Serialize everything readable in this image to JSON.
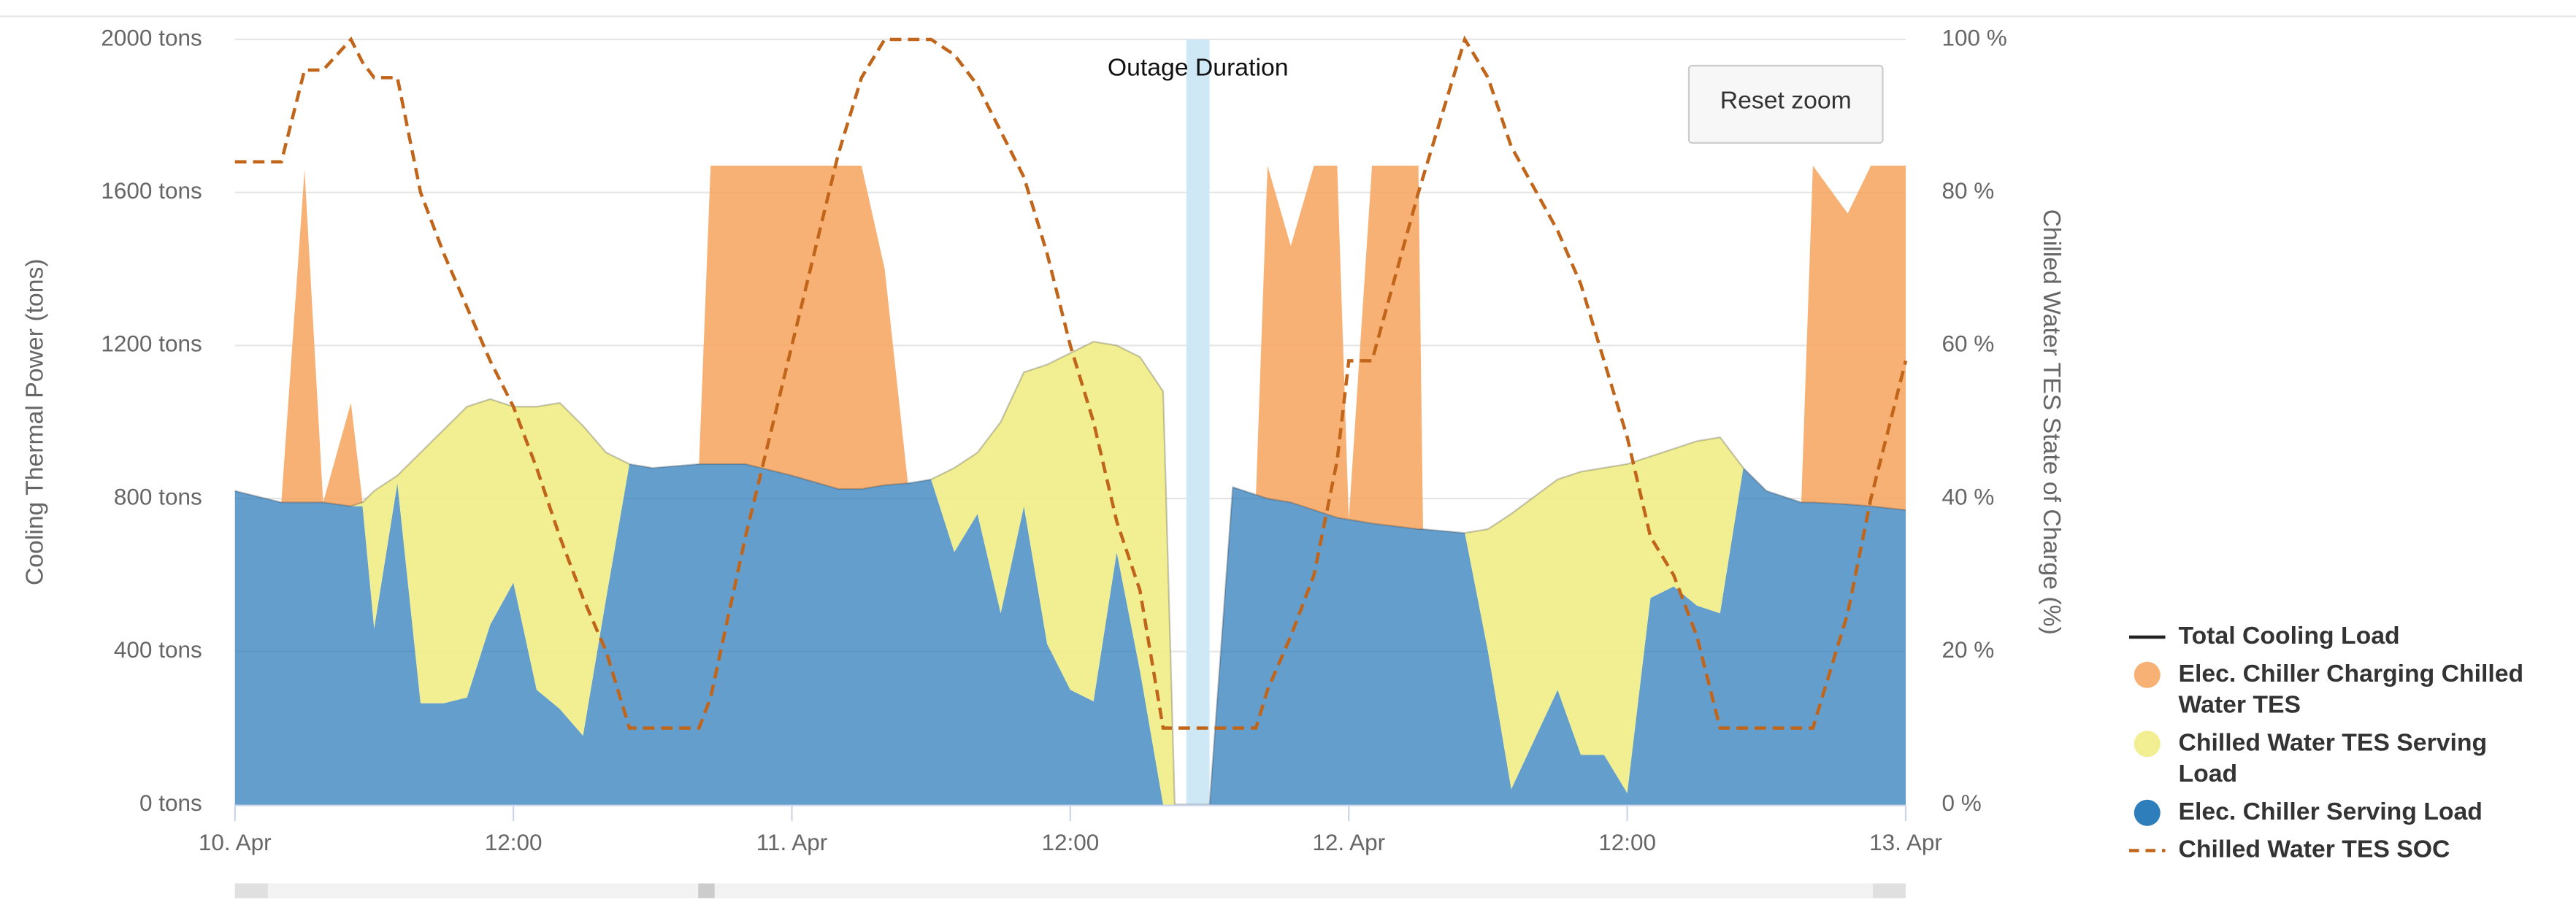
{
  "chart_data": {
    "type": "area",
    "x": [
      0,
      2,
      3,
      3.8,
      5,
      5.5,
      6,
      7,
      8,
      9,
      10,
      11,
      12,
      13,
      14,
      15,
      16,
      17,
      18,
      20,
      20.5,
      22,
      24,
      26,
      27,
      28,
      29,
      30,
      31,
      32,
      33,
      34,
      35,
      36,
      37,
      38,
      39,
      40,
      40.5,
      41,
      42,
      43,
      44,
      44.5,
      45.5,
      46.5,
      47.5,
      48,
      49,
      51,
      51.2,
      53,
      54,
      55,
      57,
      58,
      59,
      60,
      61,
      62,
      63,
      64,
      65,
      66,
      67.5,
      68,
      69.5,
      70.5,
      72
    ],
    "xlim": [
      0,
      72
    ],
    "xticks": [
      {
        "value": 0,
        "label": "10. Apr"
      },
      {
        "value": 12,
        "label": "12:00"
      },
      {
        "value": 24,
        "label": "11. Apr"
      },
      {
        "value": 36,
        "label": "12:00"
      },
      {
        "value": 48,
        "label": "12. Apr"
      },
      {
        "value": 60,
        "label": "12:00"
      },
      {
        "value": 72,
        "label": "13. Apr"
      }
    ],
    "ylim": [
      0,
      2000
    ],
    "yticks": [
      {
        "value": 0,
        "label": "0 tons"
      },
      {
        "value": 400,
        "label": "400 tons"
      },
      {
        "value": 800,
        "label": "800 tons"
      },
      {
        "value": 1200,
        "label": "1200 tons"
      },
      {
        "value": 1600,
        "label": "1600 tons"
      },
      {
        "value": 2000,
        "label": "2000 tons"
      }
    ],
    "y2lim": [
      0,
      100
    ],
    "y2ticks": [
      {
        "value": 0,
        "label": "0 %"
      },
      {
        "value": 20,
        "label": "20 %"
      },
      {
        "value": 40,
        "label": "40 %"
      },
      {
        "value": 60,
        "label": "60 %"
      },
      {
        "value": 80,
        "label": "80 %"
      },
      {
        "value": 100,
        "label": "100 %"
      }
    ],
    "ylabel": "Cooling Thermal Power (tons)",
    "y2label": "Chilled Water TES State of Charge (%)",
    "grid": true,
    "legend": "right",
    "plot_bands": [
      {
        "from": 41,
        "to": 42,
        "label": "Outage Duration",
        "color": "#cfe8f6"
      }
    ],
    "reset_button": "Reset zoom",
    "series": [
      {
        "name": "Total Cooling Load",
        "type": "line",
        "color": "#222222",
        "values": [
          820,
          790,
          790,
          790,
          780,
          790,
          820,
          860,
          920,
          980,
          1040,
          1060,
          1040,
          1040,
          1050,
          990,
          920,
          890,
          880,
          890,
          890,
          890,
          860,
          825,
          825,
          835,
          840,
          850,
          880,
          920,
          1000,
          1130,
          1150,
          1180,
          1210,
          1200,
          1170,
          1080,
          0,
          0,
          0,
          830,
          810,
          800,
          790,
          770,
          750,
          745,
          735,
          720,
          720,
          710,
          720,
          760,
          850,
          870,
          880,
          890,
          910,
          930,
          950,
          960,
          880,
          820,
          790,
          790,
          785,
          780,
          770
        ]
      },
      {
        "name": "Elec. Chiller Charging Chilled Water TES",
        "type": "area",
        "color": "#f7a35c",
        "values": [
          0,
          0,
          870,
          0,
          270,
          0,
          0,
          0,
          0,
          0,
          0,
          0,
          0,
          0,
          0,
          0,
          0,
          0,
          0,
          0,
          780,
          780,
          810,
          845,
          845,
          565,
          0,
          0,
          0,
          0,
          0,
          0,
          0,
          0,
          0,
          0,
          0,
          0,
          0,
          0,
          0,
          0,
          0,
          870,
          670,
          900,
          920,
          0,
          935,
          950,
          0,
          0,
          0,
          0,
          0,
          0,
          0,
          0,
          0,
          0,
          0,
          0,
          0,
          0,
          0,
          880,
          760,
          890,
          900
        ]
      },
      {
        "name": "Chilled Water TES Serving Load",
        "type": "area",
        "color": "#eeec7f",
        "values": [
          0,
          0,
          0,
          0,
          0,
          10,
          360,
          20,
          655,
          715,
          760,
          590,
          460,
          740,
          800,
          810,
          380,
          0,
          0,
          0,
          0,
          0,
          0,
          0,
          0,
          0,
          0,
          0,
          220,
          160,
          500,
          350,
          730,
          880,
          940,
          540,
          820,
          1080,
          0,
          0,
          0,
          0,
          0,
          0,
          0,
          0,
          0,
          0,
          0,
          0,
          0,
          0,
          320,
          720,
          550,
          740,
          750,
          860,
          370,
          360,
          430,
          460,
          0,
          0,
          0,
          0,
          0,
          0,
          0
        ]
      },
      {
        "name": "Elec. Chiller Serving Load",
        "type": "area",
        "color": "#2f7ebc",
        "values": [
          820,
          790,
          790,
          790,
          780,
          780,
          460,
          840,
          265,
          265,
          280,
          470,
          580,
          300,
          250,
          180,
          540,
          890,
          880,
          890,
          890,
          890,
          860,
          825,
          825,
          835,
          840,
          850,
          660,
          760,
          500,
          780,
          420,
          300,
          270,
          660,
          350,
          0,
          0,
          0,
          0,
          830,
          810,
          800,
          790,
          770,
          750,
          745,
          735,
          720,
          720,
          710,
          400,
          40,
          300,
          130,
          130,
          30,
          540,
          570,
          520,
          500,
          880,
          820,
          790,
          790,
          785,
          780,
          770
        ]
      },
      {
        "name": "Chilled Water TES SOC",
        "type": "line",
        "axis": "y2",
        "dash": true,
        "color": "#c0651a",
        "values": [
          84,
          84,
          96,
          96,
          100,
          97,
          95,
          95,
          80,
          72,
          65,
          58,
          52,
          44,
          35,
          27,
          20,
          10,
          10,
          10,
          14,
          35,
          60,
          85,
          95,
          100,
          100,
          100,
          98,
          94,
          88,
          82,
          72,
          60,
          50,
          37,
          28,
          10,
          10,
          10,
          10,
          10,
          10,
          15,
          22,
          30,
          45,
          58,
          58,
          80,
          82,
          100,
          95,
          86,
          75,
          68,
          58,
          48,
          35,
          30,
          22,
          10,
          10,
          10,
          10,
          10,
          25,
          40,
          58
        ]
      }
    ]
  }
}
